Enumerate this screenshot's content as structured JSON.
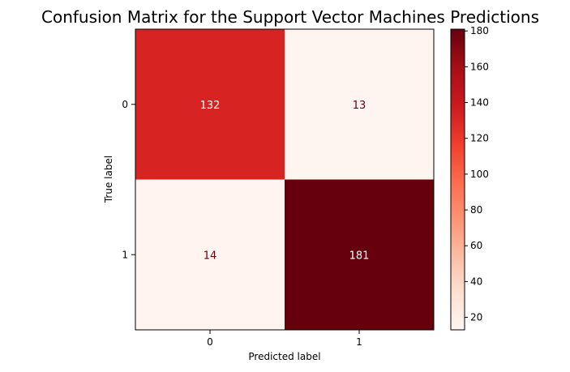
{
  "chart_data": {
    "type": "heatmap",
    "title": "Confusion Matrix for the Support Vector Machines Predictions",
    "xlabel": "Predicted label",
    "ylabel": "True label",
    "x_categories": [
      "0",
      "1"
    ],
    "y_categories": [
      "0",
      "1"
    ],
    "values": [
      [
        132,
        13
      ],
      [
        14,
        181
      ]
    ],
    "colormap": "Reds",
    "color_range": [
      13,
      181
    ],
    "colorbar_ticks": [
      "20",
      "40",
      "60",
      "80",
      "100",
      "120",
      "140",
      "160",
      "180"
    ],
    "colorbar_tick_values": [
      20,
      40,
      60,
      80,
      100,
      120,
      140,
      160,
      180
    ],
    "colors": {
      "high_cell": "#67000d",
      "mid_cell": "#d62322",
      "low_cell": "#fff5f0",
      "text_on_dark": "#ffffff",
      "text_on_light": "#67000d"
    }
  }
}
